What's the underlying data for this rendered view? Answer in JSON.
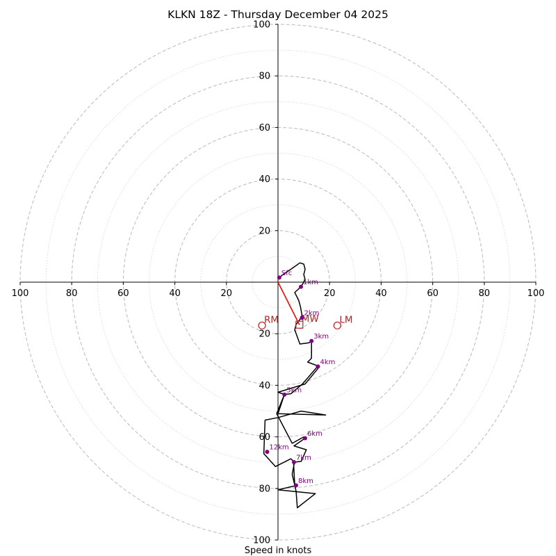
{
  "chart_data": {
    "type": "hodograph",
    "title": "KLKN 18Z - Thursday December 04 2025",
    "xlabel": "Speed in knots",
    "range": [
      -100,
      100
    ],
    "major_rings": [
      20,
      40,
      60,
      80,
      100
    ],
    "minor_rings": [
      10,
      30,
      50,
      70,
      90
    ],
    "x_ticks": [
      {
        "v": -100,
        "label": "100"
      },
      {
        "v": -80,
        "label": "80"
      },
      {
        "v": -60,
        "label": "60"
      },
      {
        "v": -40,
        "label": "40"
      },
      {
        "v": -20,
        "label": "20"
      },
      {
        "v": 20,
        "label": "20"
      },
      {
        "v": 40,
        "label": "40"
      },
      {
        "v": 60,
        "label": "60"
      },
      {
        "v": 80,
        "label": "80"
      },
      {
        "v": 100,
        "label": "100"
      }
    ],
    "y_ticks": [
      {
        "v": 100,
        "label": "100"
      },
      {
        "v": 80,
        "label": "80"
      },
      {
        "v": 60,
        "label": "60"
      },
      {
        "v": 40,
        "label": "40"
      },
      {
        "v": 20,
        "label": "20"
      },
      {
        "v": -20,
        "label": "20"
      },
      {
        "v": -40,
        "label": "40"
      },
      {
        "v": -60,
        "label": "60"
      },
      {
        "v": -80,
        "label": "80"
      },
      {
        "v": -100,
        "label": "100"
      }
    ],
    "hodograph_trace": [
      [
        0.5,
        1.8
      ],
      [
        2,
        3
      ],
      [
        5,
        5
      ],
      [
        8.5,
        7.5
      ],
      [
        10,
        7
      ],
      [
        10.5,
        5
      ],
      [
        10,
        3
      ],
      [
        10.5,
        1
      ],
      [
        8.9,
        -1.8
      ],
      [
        7,
        -3.5
      ],
      [
        6.5,
        -4
      ],
      [
        8,
        -7
      ],
      [
        8.7,
        -9.5
      ],
      [
        9.3,
        -12.8
      ],
      [
        8.5,
        -14.5
      ],
      [
        7,
        -16.4
      ],
      [
        6.5,
        -18.5
      ],
      [
        8.5,
        -24
      ],
      [
        12,
        -23.5
      ],
      [
        13,
        -23
      ],
      [
        13,
        -26
      ],
      [
        13,
        -29.5
      ],
      [
        11.5,
        -31
      ],
      [
        15.5,
        -32.5
      ],
      [
        15.5,
        -33.5
      ],
      [
        10.5,
        -39.5
      ],
      [
        0,
        -42.7
      ],
      [
        2.5,
        -43.5
      ],
      [
        0,
        -51
      ],
      [
        18.5,
        -51.5
      ],
      [
        9,
        -50
      ],
      [
        0,
        -52.5
      ],
      [
        -5,
        -53.5
      ],
      [
        -5.5,
        -66.5
      ],
      [
        -1,
        -71.5
      ],
      [
        5,
        -68.5
      ],
      [
        6,
        -69.5
      ],
      [
        6.5,
        -79
      ],
      [
        0,
        -80.5
      ],
      [
        14.5,
        -82
      ],
      [
        7.5,
        -87.5
      ],
      [
        7,
        -81
      ],
      [
        5.5,
        -74.5
      ],
      [
        6.4,
        -69.8
      ],
      [
        9,
        -69.5
      ],
      [
        11,
        -65
      ],
      [
        6.2,
        -63.5
      ],
      [
        10.5,
        -60.5
      ],
      [
        10,
        -60
      ],
      [
        5.5,
        -62.5
      ],
      [
        0,
        -52
      ],
      [
        -0.5,
        -51
      ],
      [
        2.5,
        -43.5
      ],
      [
        5,
        -43.3
      ],
      [
        9.5,
        -39.5
      ],
      [
        15.5,
        -32.5
      ]
    ],
    "height_labels": [
      {
        "label": "Sfc",
        "u": 0.5,
        "v": 1.8
      },
      {
        "label": "1km",
        "u": 8.9,
        "v": -1.8
      },
      {
        "label": "2km",
        "u": 9.3,
        "v": -13.8
      },
      {
        "label": "3km",
        "u": 13,
        "v": -22.8
      },
      {
        "label": "4km",
        "u": 15.5,
        "v": -32.7
      },
      {
        "label": "5km",
        "u": 2.5,
        "v": -43.6
      },
      {
        "label": "6km",
        "u": 10.5,
        "v": -60.5
      },
      {
        "label": "7km",
        "u": 6.2,
        "v": -69.8
      },
      {
        "label": "8km",
        "u": 7,
        "v": -78.8
      },
      {
        "label": "12km",
        "u": -4.2,
        "v": -65.8
      }
    ],
    "shear_vector": {
      "from": [
        0,
        0
      ],
      "to": [
        8.3,
        -16.5
      ],
      "color": "#ff0000"
    },
    "motion_markers": [
      {
        "label": "RM",
        "u": -6.2,
        "v": -16.8,
        "shape": "circle",
        "color": "#b22222"
      },
      {
        "label": "LM",
        "u": 23,
        "v": -16.8,
        "shape": "circle",
        "color": "#b22222"
      },
      {
        "label": "MW",
        "u": 8.3,
        "v": -16.5,
        "shape": "square",
        "color": "#b22222"
      }
    ],
    "colors": {
      "trace": "#000000",
      "height_dot": "#800080",
      "ring": "#bfbfbf"
    }
  }
}
